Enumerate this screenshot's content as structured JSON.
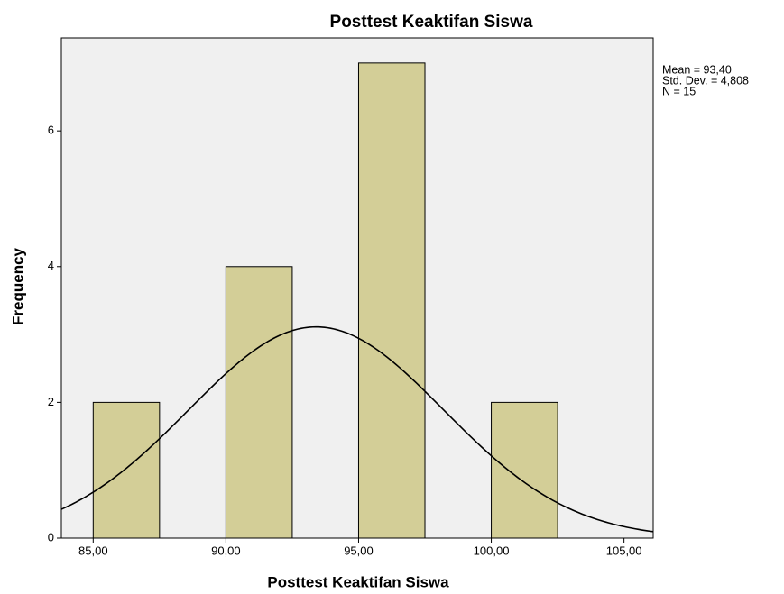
{
  "chart_data": {
    "type": "histogram",
    "title": "Posttest Keaktifan Siswa",
    "x_label": "Posttest Keaktifan Siswa",
    "y_label": "Frequency",
    "bins": [
      85,
      87.5,
      90,
      92.5,
      95,
      97.5,
      100,
      102.5
    ],
    "values": [
      2,
      0,
      4,
      0,
      7,
      0,
      2
    ],
    "color": "#d3ce97",
    "xlim": [
      83.8,
      106.1
    ],
    "xticks": [
      {
        "value": 85,
        "label": "85,00"
      },
      {
        "value": 90,
        "label": "90,00"
      },
      {
        "value": 95,
        "label": "95,00"
      },
      {
        "value": 100,
        "label": "100,00"
      },
      {
        "value": 105,
        "label": "105,00"
      }
    ],
    "ylim": [
      0,
      7.37
    ],
    "yticks": [
      0,
      2,
      4,
      6
    ],
    "normal_curve": true,
    "stats": {
      "mean": {
        "value": 93.4,
        "label": "Mean = 93,40"
      },
      "std_dev": {
        "value": 4.808,
        "label": "Std. Dev. = 4,808"
      },
      "n": {
        "value": 15,
        "label": "N = 15"
      }
    }
  }
}
